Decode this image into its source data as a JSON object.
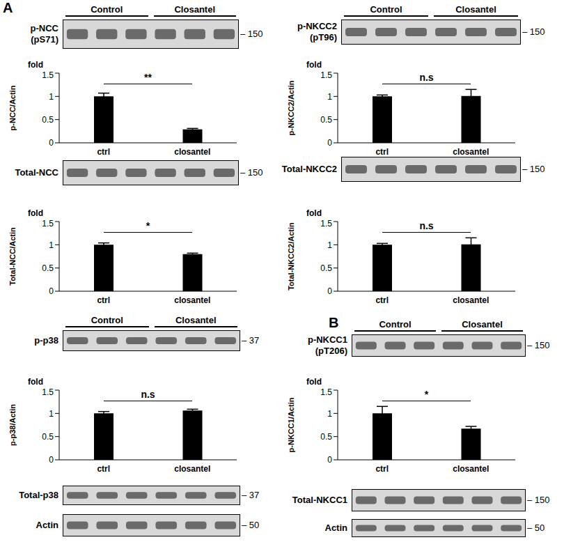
{
  "panel_labels": [
    "A",
    "B"
  ],
  "chart_data": [
    {
      "type": "bar",
      "y_label": "p-NCC/Actin",
      "unit_label": "fold",
      "categories": [
        "ctrl",
        "closantel"
      ],
      "values": [
        1,
        0.29
      ],
      "errors": [
        0.07,
        0.02
      ],
      "significance": "**",
      "color": "#000000",
      "ylim": [
        0,
        1.5
      ],
      "yticks": [
        0,
        0.5,
        1,
        1.5
      ],
      "grid": false
    },
    {
      "type": "bar",
      "y_label": "Total-NCC/Actin",
      "unit_label": "fold",
      "categories": [
        "ctrl",
        "closantel"
      ],
      "values": [
        1,
        0.8
      ],
      "errors": [
        0.04,
        0.02
      ],
      "significance": "*",
      "color": "#000000",
      "ylim": [
        0,
        1.5
      ],
      "yticks": [
        0,
        0.5,
        1,
        1.5
      ],
      "grid": false
    },
    {
      "type": "bar",
      "y_label": "p-NKCC2/Actin",
      "unit_label": "fold",
      "categories": [
        "ctrl",
        "closantel"
      ],
      "values": [
        1,
        1.01
      ],
      "errors": [
        0.03,
        0.14
      ],
      "significance": "n.s",
      "color": "#000000",
      "ylim": [
        0,
        1.5
      ],
      "yticks": [
        0,
        0.5,
        1,
        1.5
      ],
      "grid": false
    },
    {
      "type": "bar",
      "y_label": "Total-NKCC2/Actin",
      "unit_label": "fold",
      "categories": [
        "ctrl",
        "closantel"
      ],
      "values": [
        1,
        1.01
      ],
      "errors": [
        0.03,
        0.14
      ],
      "significance": "n.s",
      "color": "#000000",
      "ylim": [
        0,
        1.5
      ],
      "yticks": [
        0,
        0.5,
        1,
        1.5
      ],
      "grid": false
    },
    {
      "type": "bar",
      "y_label": "p-p38/Actin",
      "unit_label": "fold",
      "categories": [
        "ctrl",
        "closantel"
      ],
      "values": [
        1,
        1.06
      ],
      "errors": [
        0.04,
        0.03
      ],
      "significance": "n.s",
      "color": "#000000",
      "ylim": [
        0,
        1.5
      ],
      "yticks": [
        0,
        0.5,
        1,
        1.5
      ],
      "grid": false
    },
    {
      "type": "bar",
      "y_label": "p-NKCC1/Actin",
      "unit_label": "fold",
      "categories": [
        "ctrl",
        "closantel"
      ],
      "values": [
        1,
        0.67
      ],
      "errors": [
        0.15,
        0.05
      ],
      "significance": "*",
      "color": "#000000",
      "ylim": [
        0,
        1.5
      ],
      "yticks": [
        0,
        0.5,
        1,
        1.5
      ],
      "grid": false
    }
  ],
  "blots": [
    {
      "label": "p-NCC",
      "sublabel": "(pS71)",
      "mw": 150,
      "groups": [
        "Control",
        "Closantel"
      ]
    },
    {
      "label": "Total-NCC",
      "mw": 150
    },
    {
      "label": "p-NKCC2",
      "sublabel": "(pT96)",
      "mw": 150,
      "groups": [
        "Control",
        "Closantel"
      ]
    },
    {
      "label": "Total-NKCC2",
      "mw": 150
    },
    {
      "label": "p-p38",
      "mw": 37,
      "groups": [
        "Control",
        "Closantel"
      ]
    },
    {
      "label": "Total-p38",
      "mw": 37
    },
    {
      "label": "Actin",
      "mw": 50
    },
    {
      "label": "p-NKCC1",
      "sublabel": "(pT206)",
      "mw": 150,
      "groups": [
        "Control",
        "Closantel"
      ]
    },
    {
      "label": "Total-NKCC1",
      "mw": 150
    },
    {
      "label": "Actin",
      "mw": 50
    }
  ]
}
